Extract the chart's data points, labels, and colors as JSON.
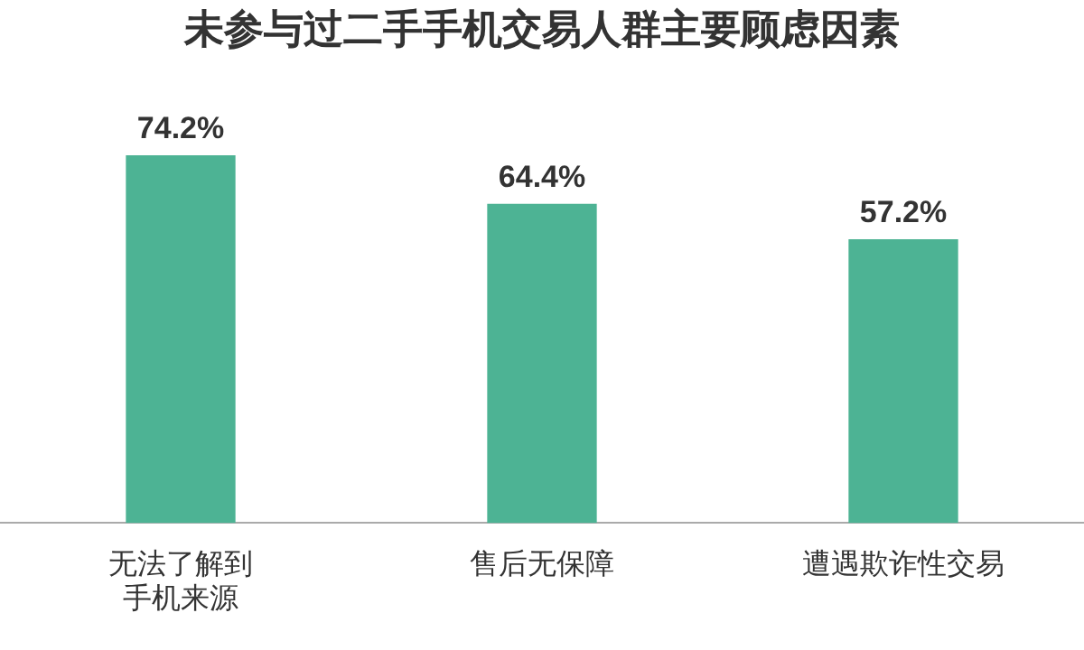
{
  "chart_data": {
    "type": "bar",
    "title": "未参与过二手手机交易人群主要顾虑因素",
    "categories": [
      "无法了解到手机来源",
      "售后无保障",
      "遭遇欺诈性交易"
    ],
    "values": [
      74.2,
      64.4,
      57.2
    ],
    "value_labels": [
      "74.2%",
      "64.4%",
      "57.2%"
    ],
    "color": "#4db394",
    "grid": false,
    "legend": false
  }
}
